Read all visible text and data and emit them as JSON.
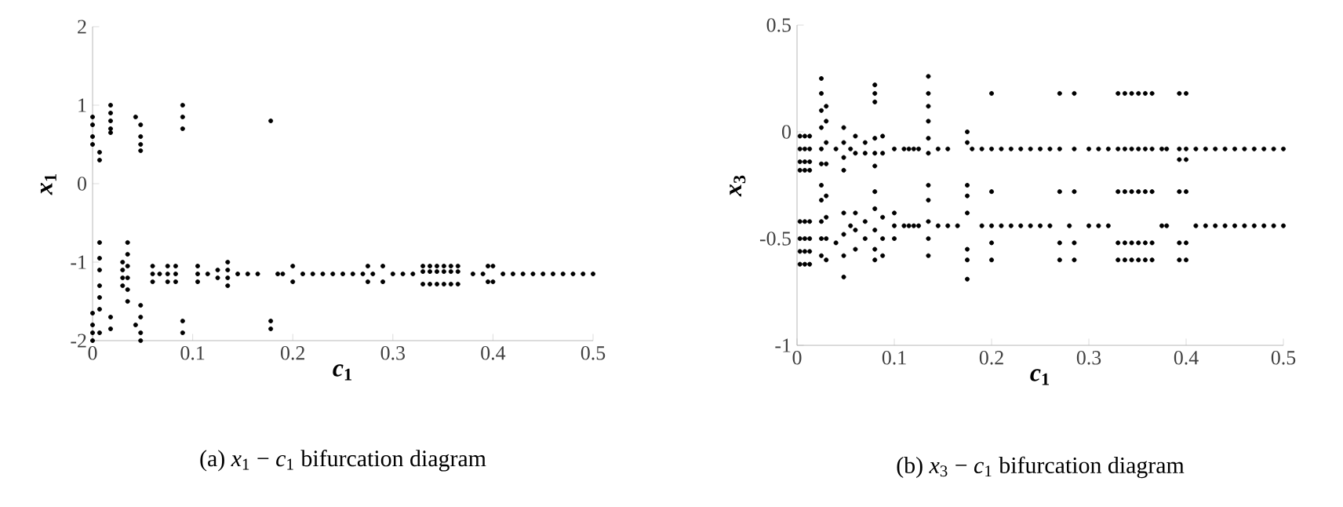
{
  "chart_data": [
    {
      "type": "scatter",
      "xlabel": "*c*$_{1}$",
      "ylabel": "*x*$_{1}$",
      "annotations": [
        "(a) *x*$_{1}$ − *c*$_{1}$  bifurcation diagram"
      ],
      "xlim": [
        0,
        0.5
      ],
      "ylim": [
        -2,
        2
      ],
      "xticks": [
        0,
        0.1,
        0.2,
        0.3,
        0.4,
        0.5
      ],
      "yticks": [
        -2,
        -1,
        0,
        1,
        2
      ],
      "marker": "circle",
      "series": [
        {
          "color": "#000000",
          "x": [
            0,
            0,
            0,
            0,
            0,
            0,
            0,
            0,
            0.007,
            0.007,
            0.007,
            0.007,
            0.007,
            0.007,
            0.007,
            0.007,
            0.007,
            0.018,
            0.018,
            0.018,
            0.018,
            0.018,
            0.018,
            0.018,
            0.03,
            0.03,
            0.03,
            0.03,
            0.035,
            0.035,
            0.035,
            0.035,
            0.035,
            0.035,
            0.043,
            0.043,
            0.048,
            0.048,
            0.048,
            0.048,
            0.048,
            0.048,
            0.048,
            0.048,
            0.06,
            0.06,
            0.06,
            0.067,
            0.075,
            0.075,
            0.075,
            0.083,
            0.083,
            0.083,
            0.09,
            0.09,
            0.09,
            0.09,
            0.09,
            0.105,
            0.105,
            0.105,
            0.115,
            0.125,
            0.125,
            0.135,
            0.135,
            0.135,
            0.135,
            0.145,
            0.155,
            0.165,
            0.178,
            0.178,
            0.178,
            0.185,
            0.19,
            0.2,
            0.2,
            0.21,
            0.22,
            0.23,
            0.24,
            0.25,
            0.26,
            0.27,
            0.275,
            0.275,
            0.28,
            0.29,
            0.29,
            0.3,
            0.31,
            0.32,
            0.33,
            0.33,
            0.33,
            0.337,
            0.337,
            0.337,
            0.344,
            0.344,
            0.344,
            0.351,
            0.351,
            0.351,
            0.358,
            0.358,
            0.358,
            0.365,
            0.365,
            0.365,
            0.38,
            0.39,
            0.395,
            0.395,
            0.4,
            0.4,
            0.41,
            0.42,
            0.43,
            0.44,
            0.45,
            0.46,
            0.47,
            0.48,
            0.49,
            0.5
          ],
          "values": [
            0.85,
            0.75,
            0.6,
            0.5,
            -1.65,
            -1.8,
            -1.9,
            -2.0,
            0.4,
            0.3,
            -0.75,
            -0.95,
            -1.1,
            -1.3,
            -1.45,
            -1.6,
            -1.9,
            1.0,
            0.9,
            0.8,
            0.7,
            0.65,
            -1.7,
            -1.85,
            -1.0,
            -1.1,
            -1.2,
            -1.3,
            -0.75,
            -0.9,
            -1.05,
            -1.2,
            -1.35,
            -1.5,
            0.85,
            -1.8,
            0.75,
            0.6,
            0.5,
            0.42,
            -1.55,
            -1.7,
            -1.9,
            -2.0,
            -1.05,
            -1.15,
            -1.25,
            -1.15,
            -1.05,
            -1.15,
            -1.25,
            -1.05,
            -1.15,
            -1.25,
            1.0,
            0.85,
            0.7,
            -1.75,
            -1.9,
            -1.05,
            -1.15,
            -1.25,
            -1.15,
            -1.1,
            -1.2,
            -1.0,
            -1.1,
            -1.2,
            -1.3,
            -1.15,
            -1.15,
            -1.15,
            0.8,
            -1.75,
            -1.85,
            -1.15,
            -1.15,
            -1.05,
            -1.25,
            -1.15,
            -1.15,
            -1.15,
            -1.15,
            -1.15,
            -1.15,
            -1.15,
            -1.05,
            -1.25,
            -1.15,
            -1.05,
            -1.25,
            -1.15,
            -1.15,
            -1.15,
            -1.05,
            -1.12,
            -1.28,
            -1.05,
            -1.12,
            -1.28,
            -1.05,
            -1.12,
            -1.28,
            -1.05,
            -1.12,
            -1.28,
            -1.05,
            -1.12,
            -1.28,
            -1.05,
            -1.12,
            -1.28,
            -1.15,
            -1.15,
            -1.05,
            -1.25,
            -1.05,
            -1.25,
            -1.15,
            -1.15,
            -1.15,
            -1.15,
            -1.15,
            -1.15,
            -1.15,
            -1.15,
            -1.15,
            -1.15
          ]
        }
      ]
    },
    {
      "type": "scatter",
      "xlabel": "*c*$_{1}$",
      "ylabel": "*x*$_{3}$",
      "annotations": [
        "(b) *x*$_{3}$ − *c*$_{1}$  bifurcation diagram"
      ],
      "xlim": [
        0,
        0.5
      ],
      "ylim": [
        -1,
        0.5
      ],
      "xticks": [
        0,
        0.1,
        0.2,
        0.3,
        0.4,
        0.5
      ],
      "yticks": [
        -1,
        -0.5,
        0,
        0.5
      ],
      "marker": "circle",
      "series": [
        {
          "color": "#000000",
          "x": [
            0.003,
            0.003,
            0.003,
            0.003,
            0.003,
            0.003,
            0.003,
            0.003,
            0.008,
            0.008,
            0.008,
            0.008,
            0.008,
            0.008,
            0.008,
            0.008,
            0.013,
            0.013,
            0.013,
            0.013,
            0.013,
            0.013,
            0.013,
            0.013,
            0.025,
            0.025,
            0.025,
            0.025,
            0.025,
            0.025,
            0.025,
            0.025,
            0.025,
            0.025,
            0.025,
            0.03,
            0.03,
            0.03,
            0.03,
            0.03,
            0.03,
            0.03,
            0.03,
            0.04,
            0.04,
            0.048,
            0.048,
            0.048,
            0.048,
            0.048,
            0.048,
            0.048,
            0.048,
            0.055,
            0.055,
            0.06,
            0.06,
            0.06,
            0.06,
            0.06,
            0.07,
            0.07,
            0.07,
            0.07,
            0.08,
            0.08,
            0.08,
            0.08,
            0.08,
            0.08,
            0.08,
            0.08,
            0.08,
            0.08,
            0.08,
            0.088,
            0.088,
            0.088,
            0.088,
            0.088,
            0.1,
            0.1,
            0.1,
            0.1,
            0.11,
            0.11,
            0.115,
            0.115,
            0.12,
            0.12,
            0.125,
            0.125,
            0.135,
            0.135,
            0.135,
            0.135,
            0.135,
            0.135,
            0.135,
            0.135,
            0.135,
            0.135,
            0.135,
            0.145,
            0.145,
            0.155,
            0.155,
            0.165,
            0.175,
            0.175,
            0.175,
            0.175,
            0.175,
            0.175,
            0.175,
            0.175,
            0.18,
            0.19,
            0.19,
            0.2,
            0.2,
            0.2,
            0.2,
            0.2,
            0.2,
            0.21,
            0.21,
            0.22,
            0.22,
            0.23,
            0.23,
            0.24,
            0.24,
            0.25,
            0.25,
            0.26,
            0.26,
            0.27,
            0.27,
            0.27,
            0.27,
            0.27,
            0.28,
            0.285,
            0.285,
            0.285,
            0.285,
            0.285,
            0.3,
            0.3,
            0.31,
            0.31,
            0.32,
            0.32,
            0.33,
            0.33,
            0.33,
            0.33,
            0.33,
            0.337,
            0.337,
            0.337,
            0.337,
            0.337,
            0.344,
            0.344,
            0.344,
            0.344,
            0.344,
            0.351,
            0.351,
            0.351,
            0.351,
            0.351,
            0.358,
            0.358,
            0.358,
            0.358,
            0.358,
            0.365,
            0.365,
            0.365,
            0.365,
            0.365,
            0.375,
            0.375,
            0.38,
            0.38,
            0.393,
            0.393,
            0.393,
            0.393,
            0.393,
            0.393,
            0.4,
            0.4,
            0.4,
            0.4,
            0.4,
            0.4,
            0.41,
            0.41,
            0.42,
            0.42,
            0.43,
            0.43,
            0.44,
            0.44,
            0.45,
            0.45,
            0.46,
            0.46,
            0.47,
            0.47,
            0.48,
            0.48,
            0.49,
            0.49,
            0.5,
            0.5
          ],
          "values": [
            -0.02,
            -0.08,
            -0.14,
            -0.18,
            -0.42,
            -0.5,
            -0.56,
            -0.62,
            -0.02,
            -0.08,
            -0.14,
            -0.18,
            -0.42,
            -0.5,
            -0.56,
            -0.62,
            -0.02,
            -0.08,
            -0.14,
            -0.18,
            -0.42,
            -0.5,
            -0.56,
            -0.62,
            0.25,
            0.18,
            0.1,
            0.02,
            -0.08,
            -0.15,
            -0.25,
            -0.32,
            -0.42,
            -0.5,
            -0.58,
            0.12,
            0.05,
            -0.05,
            -0.15,
            -0.3,
            -0.4,
            -0.5,
            -0.6,
            -0.08,
            -0.52,
            0.02,
            -0.05,
            -0.12,
            -0.18,
            -0.38,
            -0.48,
            -0.58,
            -0.68,
            -0.08,
            -0.44,
            -0.02,
            -0.1,
            -0.38,
            -0.46,
            -0.55,
            -0.05,
            -0.1,
            -0.42,
            -0.5,
            0.22,
            0.18,
            0.14,
            -0.03,
            -0.1,
            -0.16,
            -0.28,
            -0.36,
            -0.46,
            -0.55,
            -0.6,
            -0.02,
            -0.1,
            -0.4,
            -0.5,
            -0.58,
            -0.08,
            -0.38,
            -0.44,
            -0.5,
            -0.08,
            -0.44,
            -0.08,
            -0.44,
            -0.08,
            -0.44,
            -0.08,
            -0.44,
            0.26,
            0.18,
            0.12,
            0.05,
            -0.03,
            -0.1,
            -0.25,
            -0.32,
            -0.42,
            -0.5,
            -0.58,
            -0.08,
            -0.44,
            -0.08,
            -0.44,
            -0.44,
            0.0,
            -0.05,
            -0.25,
            -0.3,
            -0.38,
            -0.55,
            -0.6,
            -0.69,
            -0.08,
            -0.08,
            -0.44,
            0.18,
            -0.08,
            -0.28,
            -0.44,
            -0.52,
            -0.6,
            -0.08,
            -0.44,
            -0.08,
            -0.44,
            -0.08,
            -0.44,
            -0.08,
            -0.44,
            -0.08,
            -0.44,
            -0.08,
            -0.44,
            0.18,
            -0.08,
            -0.28,
            -0.52,
            -0.6,
            -0.44,
            0.18,
            -0.08,
            -0.28,
            -0.52,
            -0.6,
            -0.08,
            -0.44,
            -0.08,
            -0.44,
            -0.08,
            -0.44,
            0.18,
            -0.08,
            -0.28,
            -0.52,
            -0.6,
            0.18,
            -0.08,
            -0.28,
            -0.52,
            -0.6,
            0.18,
            -0.08,
            -0.28,
            -0.52,
            -0.6,
            0.18,
            -0.08,
            -0.28,
            -0.52,
            -0.6,
            0.18,
            -0.08,
            -0.28,
            -0.52,
            -0.6,
            0.18,
            -0.08,
            -0.28,
            -0.52,
            -0.6,
            -0.08,
            -0.44,
            -0.08,
            -0.44,
            0.18,
            -0.08,
            -0.13,
            -0.28,
            -0.52,
            -0.6,
            0.18,
            -0.08,
            -0.13,
            -0.28,
            -0.52,
            -0.6,
            -0.08,
            -0.44,
            -0.08,
            -0.44,
            -0.08,
            -0.44,
            -0.08,
            -0.44,
            -0.08,
            -0.44,
            -0.08,
            -0.44,
            -0.08,
            -0.44,
            -0.08,
            -0.44,
            -0.08,
            -0.44,
            -0.08,
            -0.44
          ]
        }
      ]
    }
  ]
}
